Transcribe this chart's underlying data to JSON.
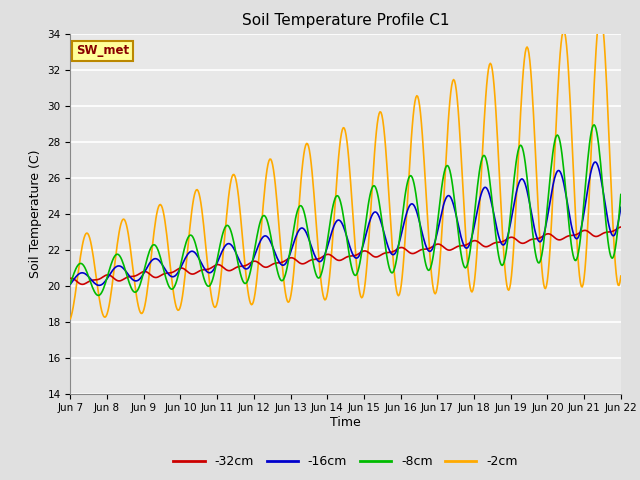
{
  "title": "Soil Temperature Profile C1",
  "xlabel": "Time",
  "ylabel": "Soil Temperature (C)",
  "ylim": [
    14,
    34
  ],
  "yticks": [
    14,
    16,
    18,
    20,
    22,
    24,
    26,
    28,
    30,
    32,
    34
  ],
  "background_color": "#e0e0e0",
  "plot_bg_color": "#e8e8e8",
  "annotation_text": "SW_met",
  "annotation_bg": "#ffff99",
  "annotation_border": "#bb8800",
  "annotation_text_color": "#880000",
  "colors": {
    "-32cm": "#cc0000",
    "-16cm": "#0000cc",
    "-8cm": "#00bb00",
    "-2cm": "#ffaa00"
  },
  "x_tick_labels": [
    "Jun 7",
    "Jun 8",
    "Jun 9",
    "Jun 10",
    "Jun 11",
    "Jun 12",
    "Jun 13",
    "Jun 14",
    "Jun 15",
    "Jun 16",
    "Jun 17",
    "Jun 18",
    "Jun 19",
    "Jun 20",
    "Jun 21",
    "Jun 22"
  ],
  "n_points": 600
}
